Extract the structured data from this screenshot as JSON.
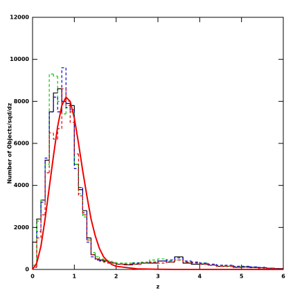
{
  "chart_data": {
    "type": "histogram",
    "x_label": "z",
    "y_label": "Number of Objects/sqd/dz",
    "xlim": [
      0,
      6
    ],
    "xticks": [
      0,
      1,
      2,
      3,
      4,
      5,
      6
    ],
    "ylim": [
      0,
      12000
    ],
    "yticks": [
      0,
      2000,
      4000,
      6000,
      8000,
      10000,
      12000
    ],
    "bins": [
      0,
      0.1,
      0.2,
      0.3,
      0.4,
      0.5,
      0.6,
      0.7,
      0.8,
      0.9,
      1.0,
      1.1,
      1.2,
      1.3,
      1.4,
      1.5,
      1.6,
      1.7,
      1.8,
      1.9,
      2.0,
      2.2,
      2.4,
      2.6,
      2.8,
      3.0,
      3.2,
      3.4,
      3.6,
      3.8,
      4.0,
      4.2,
      4.4,
      4.6,
      4.8,
      5.0,
      5.2,
      5.4,
      5.6,
      5.8,
      6.0
    ],
    "series": [
      {
        "color": "#000000",
        "linestyle": "solid",
        "values": [
          1300,
          2400,
          3300,
          5200,
          7500,
          8400,
          8600,
          8000,
          7900,
          7800,
          5000,
          3800,
          2800,
          1500,
          700,
          500,
          450,
          400,
          350,
          300,
          250,
          220,
          250,
          300,
          300,
          400,
          350,
          600,
          300,
          250,
          250,
          200,
          150,
          150,
          100,
          120,
          100,
          80,
          60,
          40
        ]
      },
      {
        "color": "#00cc00",
        "linestyle": "dashed",
        "values": [
          200,
          2300,
          3300,
          5000,
          9300,
          9200,
          8000,
          7400,
          8000,
          7500,
          5000,
          3600,
          2500,
          1400,
          800,
          600,
          500,
          450,
          400,
          350,
          300,
          300,
          320,
          350,
          450,
          500,
          400,
          450,
          350,
          300,
          300,
          250,
          200,
          150,
          150,
          120,
          100,
          80,
          60,
          40
        ]
      },
      {
        "color": "#0000cc",
        "linestyle": "dashed",
        "values": [
          100,
          1800,
          3200,
          5300,
          7500,
          8200,
          7500,
          9600,
          7700,
          7600,
          4800,
          3900,
          2700,
          1300,
          600,
          450,
          400,
          350,
          300,
          300,
          250,
          250,
          300,
          300,
          350,
          400,
          450,
          550,
          400,
          350,
          300,
          250,
          200,
          200,
          150,
          150,
          120,
          100,
          60,
          40
        ]
      },
      {
        "color": "#dd0000",
        "linestyle": "dashed",
        "values": [
          100,
          1500,
          2600,
          4600,
          6500,
          6200,
          6700,
          8600,
          7800,
          7000,
          5500,
          3500,
          2600,
          1400,
          700,
          500,
          400,
          350,
          300,
          300,
          250,
          250,
          250,
          300,
          350,
          300,
          350,
          450,
          350,
          300,
          250,
          200,
          150,
          150,
          100,
          100,
          80,
          60,
          50,
          30
        ]
      }
    ],
    "fit": {
      "color": "#ee0000",
      "x": [
        0,
        0.1,
        0.2,
        0.3,
        0.4,
        0.5,
        0.6,
        0.7,
        0.8,
        0.9,
        1.0,
        1.1,
        1.2,
        1.3,
        1.4,
        1.5,
        1.6,
        1.7,
        1.8,
        1.9,
        2.0,
        2.5,
        3.0,
        3.5,
        4.0,
        5.0,
        6.0
      ],
      "values": [
        0,
        300,
        1100,
        2400,
        3900,
        5400,
        6800,
        7800,
        8200,
        8000,
        7200,
        6000,
        4700,
        3500,
        2400,
        1600,
        1000,
        600,
        380,
        230,
        150,
        30,
        10,
        0,
        0,
        0,
        0
      ]
    }
  }
}
